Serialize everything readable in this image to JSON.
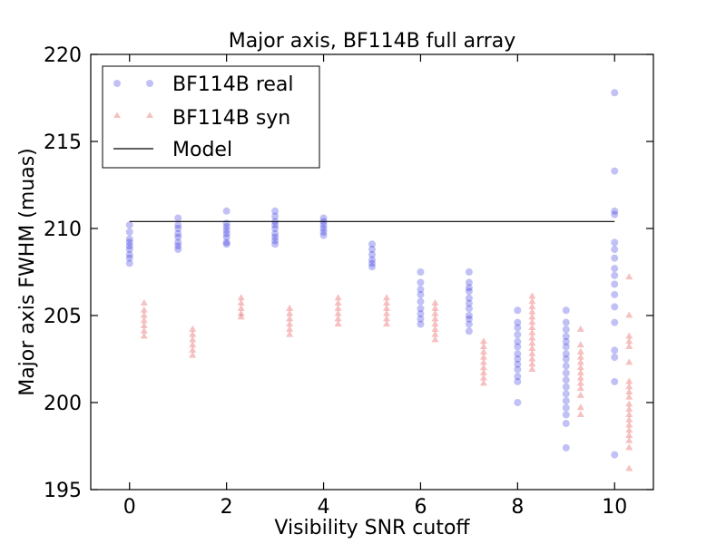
{
  "chart_data": {
    "type": "scatter",
    "title": "Major axis, BF114B full array",
    "xlabel": "Visibility SNR cutoff",
    "ylabel": "Major axis FWHM (muas)",
    "xlim": [
      -0.8,
      10.8
    ],
    "ylim": [
      195,
      220
    ],
    "xticks": [
      "0",
      "2",
      "4",
      "6",
      "8",
      "10"
    ],
    "yticks": [
      "195",
      "200",
      "205",
      "210",
      "215",
      "220"
    ],
    "legend_position": "top-left",
    "series": [
      {
        "name": "BF114B real",
        "marker": "circle",
        "color": "#2020e0",
        "points": [
          [
            0,
            210.2
          ],
          [
            0,
            209.8
          ],
          [
            0,
            209.4
          ],
          [
            0,
            209.2
          ],
          [
            0,
            209.0
          ],
          [
            0,
            208.8
          ],
          [
            0,
            208.5
          ],
          [
            0,
            208.3
          ],
          [
            0,
            208.0
          ],
          [
            1,
            210.6
          ],
          [
            1,
            210.2
          ],
          [
            1,
            210.0
          ],
          [
            1,
            209.7
          ],
          [
            1,
            209.5
          ],
          [
            1,
            209.2
          ],
          [
            1,
            209.0
          ],
          [
            1,
            208.8
          ],
          [
            2,
            211.0
          ],
          [
            2,
            210.3
          ],
          [
            2,
            210.1
          ],
          [
            2,
            209.9
          ],
          [
            2,
            209.7
          ],
          [
            2,
            209.5
          ],
          [
            2,
            209.2
          ],
          [
            2,
            209.1
          ],
          [
            3,
            211.0
          ],
          [
            3,
            210.7
          ],
          [
            3,
            210.4
          ],
          [
            3,
            210.2
          ],
          [
            3,
            210.0
          ],
          [
            3,
            209.7
          ],
          [
            3,
            209.5
          ],
          [
            3,
            209.3
          ],
          [
            3,
            209.1
          ],
          [
            4,
            210.6
          ],
          [
            4,
            210.4
          ],
          [
            4,
            210.2
          ],
          [
            4,
            210.0
          ],
          [
            4,
            209.8
          ],
          [
            4,
            209.6
          ],
          [
            5,
            209.1
          ],
          [
            5,
            208.8
          ],
          [
            5,
            208.5
          ],
          [
            5,
            208.2
          ],
          [
            5,
            208.0
          ],
          [
            5,
            207.8
          ],
          [
            6,
            207.5
          ],
          [
            6,
            206.9
          ],
          [
            6,
            206.5
          ],
          [
            6,
            206.2
          ],
          [
            6,
            205.8
          ],
          [
            6,
            205.4
          ],
          [
            6,
            205.1
          ],
          [
            6,
            204.8
          ],
          [
            6,
            204.5
          ],
          [
            7,
            207.5
          ],
          [
            7,
            206.9
          ],
          [
            7,
            206.6
          ],
          [
            7,
            206.4
          ],
          [
            7,
            206.0
          ],
          [
            7,
            205.7
          ],
          [
            7,
            205.4
          ],
          [
            7,
            205.0
          ],
          [
            7,
            204.8
          ],
          [
            7,
            204.5
          ],
          [
            7,
            204.1
          ],
          [
            8,
            205.3
          ],
          [
            8,
            204.6
          ],
          [
            8,
            204.3
          ],
          [
            8,
            203.9
          ],
          [
            8,
            203.5
          ],
          [
            8,
            203.2
          ],
          [
            8,
            202.8
          ],
          [
            8,
            202.5
          ],
          [
            8,
            202.2
          ],
          [
            8,
            201.9
          ],
          [
            8,
            201.5
          ],
          [
            8,
            201.2
          ],
          [
            8,
            200.0
          ],
          [
            9,
            205.3
          ],
          [
            9,
            204.6
          ],
          [
            9,
            204.2
          ],
          [
            9,
            203.8
          ],
          [
            9,
            203.5
          ],
          [
            9,
            203.2
          ],
          [
            9,
            202.8
          ],
          [
            9,
            202.5
          ],
          [
            9,
            202.1
          ],
          [
            9,
            201.7
          ],
          [
            9,
            201.3
          ],
          [
            9,
            200.9
          ],
          [
            9,
            200.5
          ],
          [
            9,
            200.1
          ],
          [
            9,
            199.7
          ],
          [
            9,
            199.3
          ],
          [
            9,
            198.8
          ],
          [
            9,
            197.4
          ],
          [
            10,
            217.8
          ],
          [
            10,
            213.3
          ],
          [
            10,
            211.0
          ],
          [
            10,
            210.8
          ],
          [
            10,
            209.2
          ],
          [
            10,
            208.8
          ],
          [
            10,
            208.3
          ],
          [
            10,
            207.7
          ],
          [
            10,
            207.3
          ],
          [
            10,
            206.8
          ],
          [
            10,
            206.2
          ],
          [
            10,
            205.5
          ],
          [
            10,
            204.6
          ],
          [
            10,
            203.0
          ],
          [
            10,
            202.6
          ],
          [
            10,
            201.2
          ],
          [
            10,
            197.0
          ]
        ]
      },
      {
        "name": "BF114B syn",
        "marker": "triangle",
        "color": "#e02020",
        "points": [
          [
            0.3,
            205.7
          ],
          [
            0.3,
            205.3
          ],
          [
            0.3,
            205.0
          ],
          [
            0.3,
            204.7
          ],
          [
            0.3,
            204.4
          ],
          [
            0.3,
            204.1
          ],
          [
            0.3,
            203.8
          ],
          [
            1.3,
            204.2
          ],
          [
            1.3,
            203.9
          ],
          [
            1.3,
            203.6
          ],
          [
            1.3,
            203.3
          ],
          [
            1.3,
            203.0
          ],
          [
            1.3,
            202.7
          ],
          [
            2.3,
            206.0
          ],
          [
            2.3,
            205.7
          ],
          [
            2.3,
            205.4
          ],
          [
            2.3,
            205.1
          ],
          [
            2.3,
            204.9
          ],
          [
            3.3,
            205.4
          ],
          [
            3.3,
            205.1
          ],
          [
            3.3,
            204.8
          ],
          [
            3.3,
            204.5
          ],
          [
            3.3,
            204.2
          ],
          [
            3.3,
            203.9
          ],
          [
            4.3,
            206.0
          ],
          [
            4.3,
            205.7
          ],
          [
            4.3,
            205.4
          ],
          [
            4.3,
            205.1
          ],
          [
            4.3,
            204.8
          ],
          [
            4.3,
            204.5
          ],
          [
            5.3,
            206.0
          ],
          [
            5.3,
            205.7
          ],
          [
            5.3,
            205.4
          ],
          [
            5.3,
            205.1
          ],
          [
            5.3,
            204.8
          ],
          [
            5.3,
            204.5
          ],
          [
            6.3,
            205.7
          ],
          [
            6.3,
            205.4
          ],
          [
            6.3,
            205.1
          ],
          [
            6.3,
            204.8
          ],
          [
            6.3,
            204.5
          ],
          [
            6.3,
            204.2
          ],
          [
            6.3,
            203.9
          ],
          [
            6.3,
            203.6
          ],
          [
            7.3,
            203.5
          ],
          [
            7.3,
            203.2
          ],
          [
            7.3,
            202.9
          ],
          [
            7.3,
            202.6
          ],
          [
            7.3,
            202.3
          ],
          [
            7.3,
            202.0
          ],
          [
            7.3,
            201.7
          ],
          [
            7.3,
            201.4
          ],
          [
            7.3,
            201.1
          ],
          [
            8.3,
            206.1
          ],
          [
            8.3,
            205.8
          ],
          [
            8.3,
            205.5
          ],
          [
            8.3,
            205.2
          ],
          [
            8.3,
            204.9
          ],
          [
            8.3,
            204.6
          ],
          [
            8.3,
            204.3
          ],
          [
            8.3,
            204.0
          ],
          [
            8.3,
            203.7
          ],
          [
            8.3,
            203.4
          ],
          [
            8.3,
            203.1
          ],
          [
            8.3,
            202.8
          ],
          [
            8.3,
            202.5
          ],
          [
            8.3,
            202.2
          ],
          [
            8.3,
            201.9
          ],
          [
            9.3,
            204.2
          ],
          [
            9.3,
            203.3
          ],
          [
            9.3,
            202.9
          ],
          [
            9.3,
            202.6
          ],
          [
            9.3,
            202.3
          ],
          [
            9.3,
            202.0
          ],
          [
            9.3,
            201.7
          ],
          [
            9.3,
            201.4
          ],
          [
            9.3,
            201.1
          ],
          [
            9.3,
            200.8
          ],
          [
            9.3,
            200.4
          ],
          [
            9.3,
            199.7
          ],
          [
            9.3,
            199.3
          ],
          [
            10.3,
            207.2
          ],
          [
            10.3,
            205.0
          ],
          [
            10.3,
            203.8
          ],
          [
            10.3,
            203.5
          ],
          [
            10.3,
            203.2
          ],
          [
            10.3,
            202.3
          ],
          [
            10.3,
            201.2
          ],
          [
            10.3,
            200.9
          ],
          [
            10.3,
            200.6
          ],
          [
            10.3,
            200.3
          ],
          [
            10.3,
            199.9
          ],
          [
            10.3,
            199.6
          ],
          [
            10.3,
            199.3
          ],
          [
            10.3,
            199.0
          ],
          [
            10.3,
            198.7
          ],
          [
            10.3,
            198.4
          ],
          [
            10.3,
            198.1
          ],
          [
            10.3,
            197.8
          ],
          [
            10.3,
            197.4
          ],
          [
            10.3,
            196.2
          ]
        ]
      },
      {
        "name": "Model",
        "marker": "line",
        "color": "#000000",
        "points": [
          [
            0,
            210.4
          ],
          [
            10,
            210.4
          ]
        ]
      }
    ]
  }
}
